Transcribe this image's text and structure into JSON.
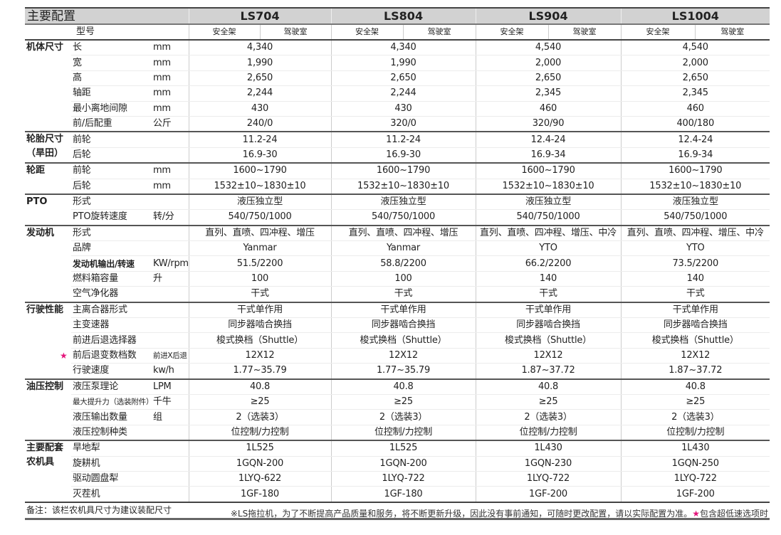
{
  "header": {
    "title": "主要配置",
    "models": [
      "LS704",
      "LS804",
      "LS904",
      "LS1004"
    ],
    "model_label": "型号",
    "cab_options": [
      "安全架",
      "驾驶室"
    ]
  },
  "groups": [
    {
      "category": "机体尺寸",
      "rows": [
        {
          "item": "长",
          "unit": "mm",
          "values": [
            "4,340",
            "4,340",
            "4,540",
            "4,540"
          ]
        },
        {
          "item": "宽",
          "unit": "mm",
          "values": [
            "1,990",
            "1,990",
            "2,000",
            "2,000"
          ]
        },
        {
          "item": "高",
          "unit": "mm",
          "values": [
            "2,650",
            "2,650",
            "2,650",
            "2,650"
          ]
        },
        {
          "item": "轴距",
          "unit": "mm",
          "values": [
            "2,244",
            "2,244",
            "2,345",
            "2,345"
          ]
        },
        {
          "item": "最小离地间隙",
          "unit": "mm",
          "values": [
            "430",
            "430",
            "460",
            "460"
          ]
        },
        {
          "item": "前/后配重",
          "unit": "公斤",
          "values": [
            "240/0",
            "320/0",
            "320/90",
            "400/180"
          ]
        }
      ]
    },
    {
      "category": "轮胎尺寸\n（旱田）",
      "rows": [
        {
          "item": "前轮",
          "unit": "",
          "values": [
            "11.2-24",
            "11.2-24",
            "12.4-24",
            "12.4-24"
          ]
        },
        {
          "item": "后轮",
          "unit": "",
          "values": [
            "16.9-30",
            "16.9-30",
            "16.9-34",
            "16.9-34"
          ]
        }
      ]
    },
    {
      "category": "轮距",
      "rows": [
        {
          "item": "前轮",
          "unit": "mm",
          "values": [
            "1600~1790",
            "1600~1790",
            "1600~1790",
            "1600~1790"
          ]
        },
        {
          "item": "后轮",
          "unit": "mm",
          "values": [
            "1532±10~1830±10",
            "1532±10~1830±10",
            "1532±10~1830±10",
            "1532±10~1830±10"
          ]
        }
      ]
    },
    {
      "category": "PTO",
      "rows": [
        {
          "item": "形式",
          "unit": "",
          "values": [
            "液压独立型",
            "液压独立型",
            "液压独立型",
            "液压独立型"
          ]
        },
        {
          "item": "PTO旋转速度",
          "unit": "转/分",
          "values": [
            "540/750/1000",
            "540/750/1000",
            "540/750/1000",
            "540/750/1000"
          ]
        }
      ]
    },
    {
      "category": "发动机",
      "rows": [
        {
          "item": "形式",
          "unit": "",
          "values": [
            "直列、直喷、四冲程、增压",
            "直列、直喷、四冲程、增压",
            "直列、直喷、四冲程、增压、中冷",
            "直列、直喷、四冲程、增压、中冷"
          ]
        },
        {
          "item": "品牌",
          "unit": "",
          "values": [
            "Yanmar",
            "Yanmar",
            "YTO",
            "YTO"
          ]
        },
        {
          "item": "发动机输出/转速",
          "unit": "KW/rpm",
          "bold": true,
          "values": [
            "51.5/2200",
            "58.8/2200",
            "66.2/2200",
            "73.5/2200"
          ]
        },
        {
          "item": "燃料箱容量",
          "unit": "升",
          "values": [
            "100",
            "100",
            "140",
            "140"
          ]
        },
        {
          "item": "空气净化器",
          "unit": "",
          "values": [
            "干式",
            "干式",
            "干式",
            "干式"
          ]
        }
      ]
    },
    {
      "category": "行驶性能",
      "rows": [
        {
          "item": "主离合器形式",
          "unit": "",
          "values": [
            "干式单作用",
            "干式单作用",
            "干式单作用",
            "干式单作用"
          ]
        },
        {
          "item": "主变速器",
          "unit": "",
          "values": [
            "同步器啮合换挡",
            "同步器啮合换挡",
            "同步器啮合换挡",
            "同步器啮合换挡"
          ]
        },
        {
          "item": "前进后退选择器",
          "unit": "",
          "values": [
            "梭式换档（Shuttle）",
            "梭式换档（Shuttle）",
            "梭式换档（Shuttle）",
            "梭式换档（Shuttle）"
          ]
        },
        {
          "item": "前后退变数档数",
          "unit": "前进X后退",
          "small_unit": true,
          "star": "★",
          "values": [
            "12X12",
            "12X12",
            "12X12",
            "12X12"
          ]
        },
        {
          "item": "行驶速度",
          "unit": "kw/h",
          "values": [
            "1.77~35.79",
            "1.77~35.79",
            "1.87~37.72",
            "1.87~37.72"
          ]
        }
      ]
    },
    {
      "category": "油压控制",
      "rows": [
        {
          "item": "液压泵理论",
          "unit": "LPM",
          "values": [
            "40.8",
            "40.8",
            "40.8",
            "40.8"
          ]
        },
        {
          "item": "最大提升力（选装附件）",
          "unit": "千牛",
          "small_item": true,
          "values": [
            "≥25",
            "≥25",
            "≥25",
            "≥25"
          ]
        },
        {
          "item": "液压输出数量",
          "unit": "组",
          "values": [
            "2（选装3）",
            "2（选装3）",
            "2（选装3）",
            "2（选装3）"
          ]
        },
        {
          "item": "液压控制种类",
          "unit": "",
          "values": [
            "位控制/力控制",
            "位控制/力控制",
            "位控制/力控制",
            "位控制/力控制"
          ]
        }
      ]
    },
    {
      "category": "主要配套\n农机具",
      "rows": [
        {
          "item": "旱地犁",
          "unit": "",
          "values": [
            "1L525",
            "1L525",
            "1L430",
            "1L430"
          ]
        },
        {
          "item": "旋耕机",
          "unit": "",
          "values": [
            "1GQN-200",
            "1GQN-200",
            "1GQN-230",
            "1GQN-250"
          ]
        },
        {
          "item": "驱动圆盘犁",
          "unit": "",
          "values": [
            "1LYQ-622",
            "1LYQ-722",
            "1LYQ-722",
            "1LYQ-722"
          ]
        },
        {
          "item": "灭茬机",
          "unit": "",
          "values": [
            "1GF-180",
            "1GF-180",
            "1GF-200",
            "1GF-200"
          ]
        }
      ]
    }
  ],
  "note": "备注：该栏农机具尺寸为建议装配尺寸",
  "disclaimer": {
    "text": "※LS拖拉机，为了不断提高产品质量和服务，将不断更新升级，因此没有事前通知，可随时更改配置，请以实际配置为准。",
    "star": "★",
    "star_text": "包含超低速选项时"
  },
  "colors": {
    "header_bg": "#d2d2d2",
    "star": "#e4157b"
  }
}
